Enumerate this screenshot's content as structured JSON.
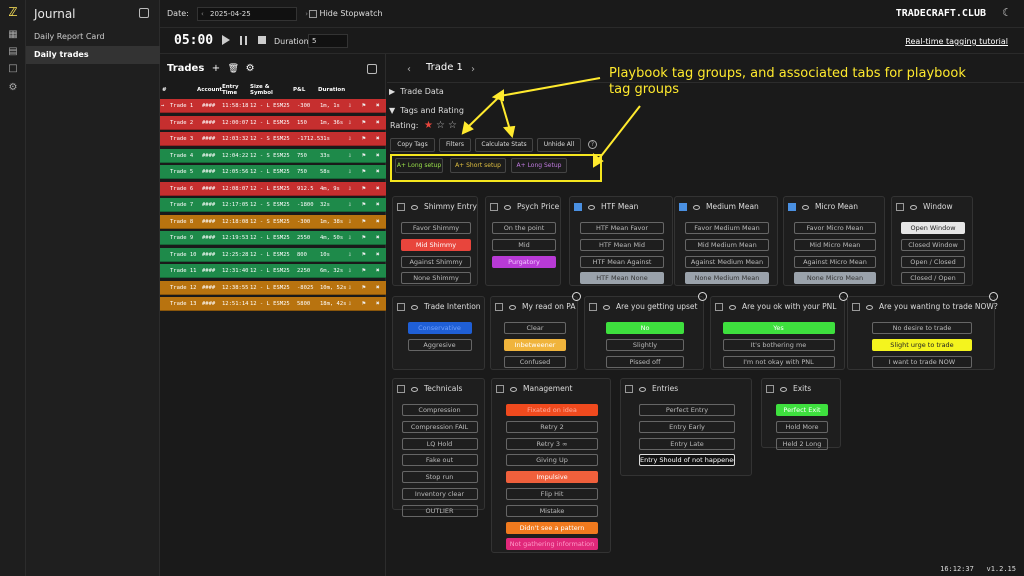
{
  "sidebar": {
    "title": "Journal",
    "items": [
      {
        "label": "Daily Report Card",
        "active": false
      },
      {
        "label": "Daily trades",
        "active": true
      }
    ]
  },
  "topbar": {
    "date_label": "Date:",
    "date_value": "2025-04-25",
    "hide_stopwatch": "Hide Stopwatch",
    "brand": "TRADECRAFT.CLUB"
  },
  "timer": {
    "time": "05:00",
    "duration_label": "Duration:",
    "duration_value": "5",
    "tutorial": "Real-time tagging tutorial"
  },
  "trades": {
    "title": "Trades",
    "columns": [
      "#",
      "Account",
      "Entry Time",
      "Size & Symbol",
      "P&L",
      "Duration"
    ],
    "rows": [
      {
        "name": "Trade 1",
        "acct": "####",
        "time": "11:58:18",
        "size": "12 - L  ESM25",
        "pnl": "-300",
        "dur": "1m, 1s",
        "color": "#c62f2f"
      },
      {
        "name": "Trade 2",
        "acct": "####",
        "time": "12:00:07",
        "size": "12 - L  ESM25",
        "pnl": "150",
        "dur": "1m, 36s",
        "color": "#c62f2f"
      },
      {
        "name": "Trade 3",
        "acct": "####",
        "time": "12:03:32",
        "size": "12 - S  ESM25",
        "pnl": "-1712.5",
        "dur": "31s",
        "color": "#c62f2f"
      },
      {
        "name": "Trade 4",
        "acct": "####",
        "time": "12:04:22",
        "size": "12 - S  ESM25",
        "pnl": "750",
        "dur": "33s",
        "color": "#1e8a4a"
      },
      {
        "name": "Trade 5",
        "acct": "####",
        "time": "12:05:56",
        "size": "12 - L  ESM25",
        "pnl": "750",
        "dur": "58s",
        "color": "#1e8a4a"
      },
      {
        "name": "Trade 6",
        "acct": "####",
        "time": "12:08:07",
        "size": "12 - L  ESM25",
        "pnl": "912.5",
        "dur": "4m, 9s",
        "color": "#c62f2f"
      },
      {
        "name": "Trade 7",
        "acct": "####",
        "time": "12:17:05",
        "size": "12 - S  ESM25",
        "pnl": "-1800",
        "dur": "32s",
        "color": "#1e8a4a"
      },
      {
        "name": "Trade 8",
        "acct": "####",
        "time": "12:18:08",
        "size": "12 - S  ESM25",
        "pnl": "-300",
        "dur": "1m, 38s",
        "color": "#b8730f"
      },
      {
        "name": "Trade 9",
        "acct": "####",
        "time": "12:19:53",
        "size": "12 - L  ESM25",
        "pnl": "2550",
        "dur": "4m, 50s",
        "color": "#1e8a4a"
      },
      {
        "name": "Trade 10",
        "acct": "####",
        "time": "12:25:28",
        "size": "12 - L  ESM25",
        "pnl": "800",
        "dur": "10s",
        "color": "#1e8a4a"
      },
      {
        "name": "Trade 11",
        "acct": "####",
        "time": "12:31:40",
        "size": "12 - L  ESM25",
        "pnl": "2250",
        "dur": "6m, 32s",
        "color": "#1e8a4a"
      },
      {
        "name": "Trade 12",
        "acct": "####",
        "time": "12:38:55",
        "size": "12 - L  ESM25",
        "pnl": "-8025",
        "dur": "10m, 52s",
        "color": "#b8730f"
      },
      {
        "name": "Trade 13",
        "acct": "####",
        "time": "12:51:14",
        "size": "12 - L  ESM25",
        "pnl": "5800",
        "dur": "18m, 42s",
        "color": "#b8730f"
      }
    ]
  },
  "detail": {
    "title": "Trade 1",
    "trade_data": "Trade Data",
    "tags_rating": "Tags and Rating",
    "rating_label": "Rating:",
    "rating": 1,
    "buttons": [
      "Copy Tags",
      "Filters",
      "Calculate Stats",
      "Unhide All"
    ],
    "playbook_tabs": [
      {
        "label": "A+ Long setup",
        "color": "#9be34a"
      },
      {
        "label": "A+ Short setup",
        "color": "#e0c040"
      },
      {
        "label": "A+ Long Setup",
        "color": "#c07ae0"
      }
    ],
    "annotation": "Playbook tag groups, and associated tabs for playbook tag groups"
  },
  "groups": [
    {
      "title": "Shimmy Entry",
      "checked": false,
      "tags": [
        {
          "label": "Favor Shimmy",
          "bg": "",
          "fg": ""
        },
        {
          "label": "Mid Shimmy",
          "bg": "#e8453c",
          "fg": "#fff"
        },
        {
          "label": "Against Shimmy",
          "bg": "",
          "fg": ""
        },
        {
          "label": "None Shimmy",
          "bg": "",
          "fg": ""
        }
      ]
    },
    {
      "title": "Psych Price",
      "checked": false,
      "tags": [
        {
          "label": "On the point",
          "bg": "",
          "fg": ""
        },
        {
          "label": "Mid",
          "bg": "",
          "fg": ""
        },
        {
          "label": "Purgatory",
          "bg": "#b83ad6",
          "fg": "#f2c8ff"
        }
      ]
    },
    {
      "title": "HTF Mean",
      "checked": true,
      "tags": [
        {
          "label": "HTF Mean Favor",
          "bg": "",
          "fg": ""
        },
        {
          "label": "HTF Mean Mid",
          "bg": "",
          "fg": ""
        },
        {
          "label": "HTF Mean Against",
          "bg": "",
          "fg": ""
        },
        {
          "label": "HTF Mean None",
          "bg": "#9aa2ab",
          "fg": "#333"
        }
      ]
    },
    {
      "title": "Medium Mean",
      "checked": true,
      "tags": [
        {
          "label": "Favor Medium Mean",
          "bg": "",
          "fg": ""
        },
        {
          "label": "Mid Medium Mean",
          "bg": "",
          "fg": ""
        },
        {
          "label": "Against Medium Mean",
          "bg": "",
          "fg": ""
        },
        {
          "label": "None Medium Mean",
          "bg": "#9aa2ab",
          "fg": "#333"
        }
      ]
    },
    {
      "title": "Micro Mean",
      "checked": true,
      "tags": [
        {
          "label": "Favor Micro Mean",
          "bg": "",
          "fg": ""
        },
        {
          "label": "Mid Micro Mean",
          "bg": "",
          "fg": ""
        },
        {
          "label": "Against Micro Mean",
          "bg": "",
          "fg": ""
        },
        {
          "label": "None Micro Mean",
          "bg": "#9aa2ab",
          "fg": "#333"
        }
      ]
    },
    {
      "title": "Window",
      "checked": false,
      "tags": [
        {
          "label": "Open Window",
          "bg": "#e6e6e6",
          "fg": "#222"
        },
        {
          "label": "Closed Window",
          "bg": "",
          "fg": ""
        },
        {
          "label": "Open / Closed",
          "bg": "",
          "fg": ""
        },
        {
          "label": "Closed / Open",
          "bg": "",
          "fg": ""
        }
      ]
    },
    {
      "title": "Trade Intention",
      "checked": false,
      "alarm": false,
      "tags": [
        {
          "label": "Conservative",
          "bg": "#1f5fd6",
          "fg": "#6fa0ff"
        },
        {
          "label": "Aggresive",
          "bg": "",
          "fg": ""
        }
      ]
    },
    {
      "title": "My read on PA",
      "checked": false,
      "alarm": true,
      "tags": [
        {
          "label": "Clear",
          "bg": "",
          "fg": ""
        },
        {
          "label": "Inbetweener",
          "bg": "#f0b43c",
          "fg": "#fff"
        },
        {
          "label": "Confused",
          "bg": "",
          "fg": ""
        }
      ]
    },
    {
      "title": "Are you getting upset",
      "checked": false,
      "alarm": true,
      "tags": [
        {
          "label": "No",
          "bg": "#3ee03e",
          "fg": "#fff"
        },
        {
          "label": "Slightly",
          "bg": "",
          "fg": ""
        },
        {
          "label": "Pissed off",
          "bg": "",
          "fg": ""
        }
      ]
    },
    {
      "title": "Are you ok with your PNL",
      "checked": false,
      "alarm": true,
      "tags": [
        {
          "label": "Yes",
          "bg": "#3ee03e",
          "fg": "#fff"
        },
        {
          "label": "It's bothering me",
          "bg": "",
          "fg": ""
        },
        {
          "label": "I'm not okay with PNL",
          "bg": "",
          "fg": ""
        }
      ]
    },
    {
      "title": "Are you wanting to trade NOW?",
      "checked": false,
      "alarm": true,
      "tags": [
        {
          "label": "No desire to trade",
          "bg": "",
          "fg": ""
        },
        {
          "label": "Slight urge to trade",
          "bg": "#f4f41e",
          "fg": "#222"
        },
        {
          "label": "I want to trade NOW",
          "bg": "",
          "fg": ""
        }
      ]
    },
    {
      "title": "Technicals",
      "checked": false,
      "tags": [
        {
          "label": "Compression",
          "bg": "",
          "fg": ""
        },
        {
          "label": "Compression FAIL",
          "bg": "",
          "fg": ""
        },
        {
          "label": "LQ Hold",
          "bg": "",
          "fg": ""
        },
        {
          "label": "Fake out",
          "bg": "",
          "fg": ""
        },
        {
          "label": "Stop run",
          "bg": "",
          "fg": ""
        },
        {
          "label": "Inventory clear",
          "bg": "",
          "fg": ""
        },
        {
          "label": "OUTLIER",
          "bg": "",
          "fg": ""
        }
      ]
    },
    {
      "title": "Management",
      "checked": false,
      "tags": [
        {
          "label": "Fixated on idea",
          "bg": "#f04a1e",
          "fg": "#ffb0a0"
        },
        {
          "label": "Retry 2",
          "bg": "",
          "fg": ""
        },
        {
          "label": "Retry 3 ∞",
          "bg": "",
          "fg": ""
        },
        {
          "label": "Giving Up",
          "bg": "",
          "fg": ""
        },
        {
          "label": "Impulsive",
          "bg": "#f0603c",
          "fg": "#fff"
        },
        {
          "label": "Flip Hit",
          "bg": "",
          "fg": ""
        },
        {
          "label": "Mistake",
          "bg": "",
          "fg": ""
        },
        {
          "label": "Didn't see a pattern",
          "bg": "#f07a1e",
          "fg": "#fff"
        },
        {
          "label": "Not gathering information",
          "bg": "#e0287a",
          "fg": "#ff9ac8"
        }
      ]
    },
    {
      "title": "Entries",
      "checked": false,
      "tags": [
        {
          "label": "Perfect Entry",
          "bg": "",
          "fg": ""
        },
        {
          "label": "Entry Early",
          "bg": "",
          "fg": ""
        },
        {
          "label": "Entry Late",
          "bg": "",
          "fg": ""
        },
        {
          "label": "Entry Should of not happened",
          "bg": "#111",
          "fg": "#fff"
        }
      ]
    },
    {
      "title": "Exits",
      "checked": false,
      "tags": [
        {
          "label": "Perfect Exit",
          "bg": "#3ee03e",
          "fg": "#fff"
        },
        {
          "label": "Hold More",
          "bg": "",
          "fg": ""
        },
        {
          "label": "Held 2 Long",
          "bg": "",
          "fg": ""
        }
      ]
    }
  ],
  "status": {
    "clock": "16:12:37",
    "version": "v1.2.15"
  }
}
